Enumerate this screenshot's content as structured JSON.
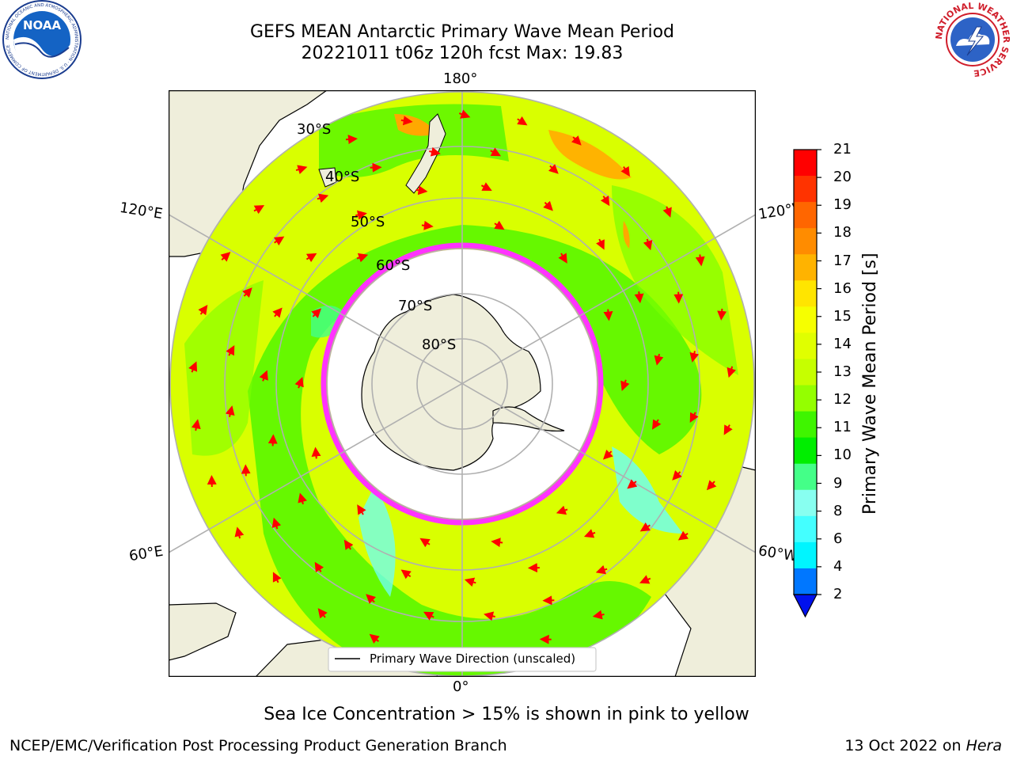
{
  "title": {
    "line1": "GEFS MEAN Antarctic Primary Wave Mean Period",
    "line2": "20221011 t06z 120h fcst   Max: 19.83"
  },
  "logos": {
    "left": "NOAA",
    "left_ring": "NATIONAL OCEANIC AND ATMOSPHERIC ADMINISTRATION · U.S. DEPARTMENT OF COMMERCE",
    "right_ring": "NATIONAL WEATHER SERVICE"
  },
  "map": {
    "lon_labels": {
      "top": "180°",
      "bottom": "0°",
      "left_upper": "120°E",
      "left_lower": "60°E",
      "right_upper": "120°W",
      "right_lower": "60°W"
    },
    "lat_labels": [
      "30°S",
      "40°S",
      "50°S",
      "60°S",
      "70°S",
      "80°S"
    ],
    "legend": "Primary Wave Direction (unscaled)",
    "colors": {
      "land": "#efeedb",
      "ocean_main": "#d9ff00",
      "green": "#3ff500",
      "cyan": "#6ffff0",
      "orange": "#ffa800",
      "ice": "#ff33ff",
      "arrow": "#ff0000",
      "grid": "#b0b0b0"
    }
  },
  "colorbar": {
    "label": "Primary Wave Mean Period [s]",
    "ticks": [
      "21",
      "20",
      "19",
      "18",
      "17",
      "16",
      "15",
      "14",
      "13",
      "12",
      "11",
      "10",
      "9",
      "8",
      "6",
      "4",
      "2"
    ],
    "colors": [
      "#ff0000",
      "#ff3300",
      "#ff6600",
      "#ff8c00",
      "#ffb300",
      "#ffe500",
      "#f6ff00",
      "#e0ff00",
      "#c6ff00",
      "#94ff00",
      "#3ff500",
      "#00ee00",
      "#44ff88",
      "#88fff0",
      "#44ffff",
      "#00f5ff",
      "#0077ff"
    ],
    "extend_color": "#0011ee"
  },
  "caption": "Sea Ice Concentration > 15% is shown in pink to yellow",
  "footer": {
    "left": "NCEP/EMC/Verification Post Processing Product Generation Branch",
    "right_date": "13 Oct 2022 on ",
    "right_host": "Hera"
  }
}
